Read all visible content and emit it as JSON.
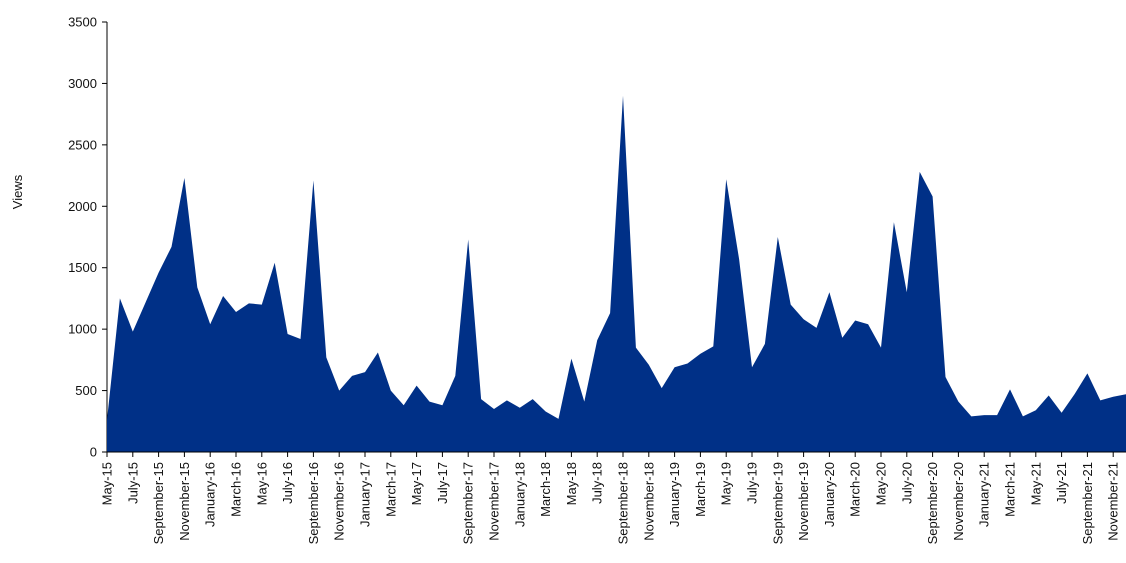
{
  "chart_data": {
    "type": "area",
    "ylabel": "Views",
    "ylim": [
      0,
      3500
    ],
    "yticks": [
      0,
      500,
      1000,
      1500,
      2000,
      2500,
      3000,
      3500
    ],
    "grid": false,
    "legend": "none",
    "color": "#003087",
    "x_labels": [
      "May-15",
      "July-15",
      "September-15",
      "November-15",
      "January-16",
      "March-16",
      "May-16",
      "July-16",
      "September-16",
      "November-16",
      "January-17",
      "March-17",
      "May-17",
      "July-17",
      "September-17",
      "November-17",
      "January-18",
      "March-18",
      "May-18",
      "July-18",
      "September-18",
      "November-18",
      "January-19",
      "March-19",
      "May-19",
      "July-19",
      "September-19",
      "November-19",
      "January-20",
      "March-20",
      "May-20",
      "July-20",
      "September-20",
      "November-20",
      "January-21",
      "March-21",
      "May-21",
      "July-21",
      "September-21",
      "November-21"
    ],
    "months": [
      "May-15",
      "Jun-15",
      "Jul-15",
      "Aug-15",
      "Sep-15",
      "Oct-15",
      "Nov-15",
      "Dec-15",
      "Jan-16",
      "Feb-16",
      "Mar-16",
      "Apr-16",
      "May-16",
      "Jun-16",
      "Jul-16",
      "Aug-16",
      "Sep-16",
      "Oct-16",
      "Nov-16",
      "Dec-16",
      "Jan-17",
      "Feb-17",
      "Mar-17",
      "Apr-17",
      "May-17",
      "Jun-17",
      "Jul-17",
      "Aug-17",
      "Sep-17",
      "Oct-17",
      "Nov-17",
      "Dec-17",
      "Jan-18",
      "Feb-18",
      "Mar-18",
      "Apr-18",
      "May-18",
      "Jun-18",
      "Jul-18",
      "Aug-18",
      "Sep-18",
      "Oct-18",
      "Nov-18",
      "Dec-18",
      "Jan-19",
      "Feb-19",
      "Mar-19",
      "Apr-19",
      "May-19",
      "Jun-19",
      "Jul-19",
      "Aug-19",
      "Sep-19",
      "Oct-19",
      "Nov-19",
      "Dec-19",
      "Jan-20",
      "Feb-20",
      "Mar-20",
      "Apr-20",
      "May-20",
      "Jun-20",
      "Jul-20",
      "Aug-20",
      "Sep-20",
      "Oct-20",
      "Nov-20",
      "Dec-20",
      "Jan-21",
      "Feb-21",
      "Mar-21",
      "Apr-21",
      "May-21",
      "Jun-21",
      "Jul-21",
      "Aug-21",
      "Sep-21",
      "Oct-21",
      "Nov-21",
      "Dec-21"
    ],
    "values": [
      260,
      1250,
      980,
      1220,
      1460,
      1670,
      2230,
      1340,
      1040,
      1270,
      1140,
      1210,
      1200,
      1540,
      960,
      920,
      2210,
      770,
      500,
      620,
      650,
      810,
      500,
      380,
      540,
      410,
      380,
      620,
      1730,
      430,
      350,
      420,
      360,
      430,
      330,
      270,
      760,
      410,
      910,
      1130,
      2900,
      850,
      710,
      520,
      690,
      720,
      800,
      860,
      2220,
      1570,
      690,
      880,
      1750,
      1200,
      1080,
      1010,
      1300,
      930,
      1070,
      1040,
      850,
      1870,
      1300,
      2280,
      2080,
      610,
      410,
      290,
      300,
      300,
      510,
      290,
      340,
      460,
      320,
      470,
      640,
      420,
      450,
      470
    ]
  }
}
